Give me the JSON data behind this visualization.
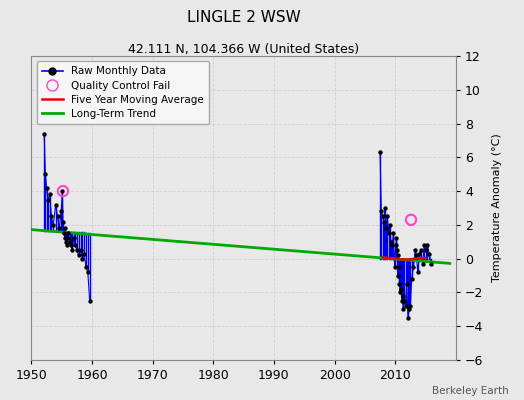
{
  "title": "LINGLE 2 WSW",
  "subtitle": "42.111 N, 104.366 W (United States)",
  "ylabel": "Temperature Anomaly (°C)",
  "watermark": "Berkeley Earth",
  "xlim": [
    1950,
    2020
  ],
  "ylim": [
    -6,
    12
  ],
  "yticks": [
    -6,
    -4,
    -2,
    0,
    2,
    4,
    6,
    8,
    10,
    12
  ],
  "xticks": [
    1950,
    1960,
    1970,
    1980,
    1990,
    2000,
    2010
  ],
  "background_color": "#e8e8e8",
  "plot_bg_color": "#e8e8e8",
  "early_points_x": [
    1952.1,
    1952.3,
    1952.5,
    1952.7,
    1953.0,
    1953.3,
    1953.6,
    1954.0,
    1954.3,
    1954.6,
    1954.9,
    1955.1,
    1955.2,
    1955.4,
    1955.5,
    1955.6,
    1955.7,
    1955.8,
    1956.0,
    1956.1,
    1956.3,
    1956.5,
    1956.7,
    1957.0,
    1957.2,
    1957.5,
    1957.8,
    1958.1,
    1958.4,
    1958.7,
    1959.0,
    1959.3,
    1959.6
  ],
  "early_points_y": [
    7.4,
    5.0,
    4.2,
    3.5,
    3.8,
    2.5,
    2.0,
    3.2,
    2.5,
    1.8,
    2.8,
    4.0,
    2.2,
    1.5,
    1.2,
    1.8,
    1.0,
    0.8,
    1.5,
    1.2,
    1.0,
    0.8,
    0.5,
    1.2,
    0.8,
    0.5,
    0.2,
    0.5,
    0.0,
    0.3,
    -0.5,
    -0.8,
    -2.5
  ],
  "early_baseline_y": [
    1.65,
    1.65,
    1.65,
    1.65,
    1.63,
    1.63,
    1.63,
    1.61,
    1.61,
    1.61,
    1.61,
    1.6,
    1.6,
    1.6,
    1.6,
    1.6,
    1.6,
    1.6,
    1.58,
    1.58,
    1.58,
    1.58,
    1.58,
    1.57,
    1.57,
    1.57,
    1.57,
    1.55,
    1.55,
    1.55,
    1.53,
    1.53,
    1.53
  ],
  "qc_fail_early_x": 1955.2,
  "qc_fail_early_y": 4.0,
  "late_points_x": [
    2007.5,
    2007.7,
    2007.9,
    2008.1,
    2008.3,
    2008.5,
    2008.7,
    2008.9,
    2009.1,
    2009.3,
    2009.5,
    2009.7,
    2009.9,
    2010.1,
    2010.2,
    2010.3,
    2010.4,
    2010.5,
    2010.6,
    2010.7,
    2010.8,
    2010.9,
    2011.1,
    2011.2,
    2011.3,
    2011.5,
    2011.7,
    2011.9,
    2012.1,
    2012.3,
    2012.5,
    2012.7,
    2013.0,
    2013.3,
    2013.5,
    2013.7,
    2014.0,
    2014.2,
    2014.5,
    2014.8,
    2015.0,
    2015.3,
    2015.6,
    2015.9
  ],
  "late_points_y": [
    6.3,
    2.8,
    2.5,
    2.2,
    3.0,
    1.8,
    2.5,
    1.5,
    2.0,
    1.0,
    0.8,
    1.5,
    -0.5,
    0.8,
    1.2,
    0.5,
    -1.0,
    0.2,
    -0.5,
    -1.5,
    -2.0,
    -1.8,
    -2.5,
    -2.2,
    -3.0,
    -2.5,
    -2.8,
    -1.5,
    -3.5,
    -3.0,
    -2.8,
    -1.2,
    -0.5,
    0.5,
    0.2,
    -0.8,
    0.3,
    0.5,
    -0.3,
    0.8,
    0.5,
    0.8,
    0.3,
    -0.3
  ],
  "late_baseline_y": 0.0,
  "qc_fail_late_x": 2012.6,
  "qc_fail_late_y": 2.3,
  "five_yr_avg_x": [
    2008.0,
    2009.0,
    2010.0,
    2011.0,
    2012.0,
    2013.0,
    2014.0,
    2015.0
  ],
  "five_yr_avg_y": [
    0.08,
    0.04,
    0.0,
    -0.04,
    -0.05,
    -0.02,
    0.01,
    0.03
  ],
  "trend_x": [
    1950,
    2019
  ],
  "trend_y": [
    1.72,
    -0.28
  ],
  "line_color": "#0000ee",
  "dot_color": "#000000",
  "qc_color": "#ff44cc",
  "avg_color": "#ee0000",
  "trend_color": "#00aa00",
  "grid_color": "#d0d0d0",
  "legend_bg": "#f5f5f5"
}
